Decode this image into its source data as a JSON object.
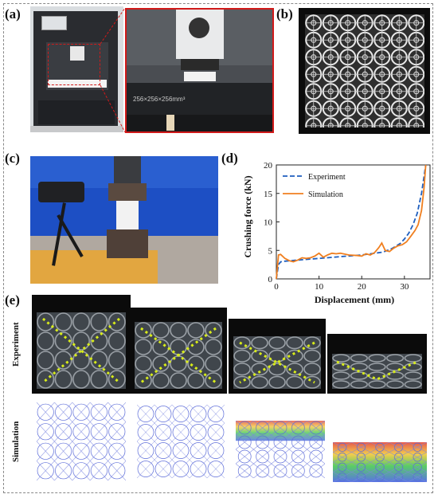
{
  "panels": {
    "a": "(a)",
    "b": "(b)",
    "c": "(c)",
    "d": "(d)",
    "e": "(e)"
  },
  "printer": {
    "bed_text": "256×256×256mm³"
  },
  "chart_data": {
    "type": "line",
    "xlabel": "Displacement (mm)",
    "ylabel": "Crushing force (kN)",
    "xlim": [
      0,
      36
    ],
    "ylim": [
      0,
      20
    ],
    "xticks": [
      0,
      10,
      20,
      30
    ],
    "yticks": [
      0,
      5,
      10,
      15,
      20
    ],
    "legend_position": "top-left",
    "series": [
      {
        "name": "Experiment",
        "style": "dashed",
        "color": "#1f5fbf",
        "x": [
          0,
          0.5,
          1,
          2,
          5,
          10,
          15,
          20,
          25,
          27,
          29,
          30,
          31,
          32,
          33,
          34,
          35
        ],
        "y": [
          0,
          2.5,
          3.0,
          3.1,
          3.3,
          3.6,
          3.9,
          4.2,
          4.7,
          5.3,
          6.2,
          7.0,
          8.0,
          9.5,
          11.5,
          15.0,
          20.0
        ]
      },
      {
        "name": "Simulation",
        "style": "solid",
        "color": "#f07f1f",
        "x": [
          0,
          0.5,
          1,
          2,
          3,
          4,
          5,
          6,
          7,
          8,
          9,
          10,
          11,
          12,
          13,
          14,
          15,
          17,
          19,
          20,
          21,
          22,
          23,
          24,
          24.7,
          25.5,
          26.5,
          27.5,
          28.5,
          29.5,
          30.5,
          31.5,
          32.5,
          33.2,
          34,
          34.6,
          35
        ],
        "y": [
          0,
          4.2,
          4.3,
          3.6,
          3.2,
          3.0,
          3.3,
          3.7,
          3.6,
          3.7,
          4.0,
          4.5,
          3.8,
          4.2,
          4.5,
          4.4,
          4.5,
          4.2,
          4.1,
          4.0,
          4.4,
          4.2,
          4.6,
          5.5,
          6.3,
          5.0,
          4.8,
          5.4,
          5.8,
          6.0,
          6.5,
          7.5,
          8.5,
          9.5,
          12.0,
          16.0,
          20.0
        ]
      }
    ]
  },
  "rows": {
    "experiment": "Experiment",
    "simulation": "Simulation"
  },
  "colors": {
    "red_box": "#d11a1a",
    "yellow_line": "#d8ec1a",
    "experiment_line": "#1f5fbf",
    "simulation_line": "#f07f1f"
  }
}
